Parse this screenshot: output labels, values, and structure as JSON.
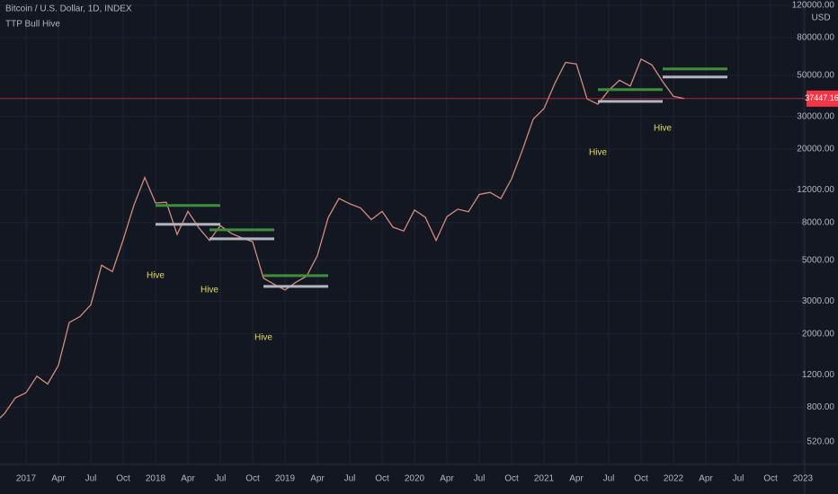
{
  "chart_data": {
    "type": "line",
    "title": "Bitcoin / U.S. Dollar, 1D, INDEX",
    "subtitle": "TTP Bull Hive",
    "y_unit": "USD",
    "log_scale": true,
    "grid": true,
    "color": "#d28b7e",
    "x": [
      "2016-10",
      "2016-11",
      "2016-12",
      "2017-01",
      "2017-02",
      "2017-03",
      "2017-04",
      "2017-05",
      "2017-06",
      "2017-07",
      "2017-08",
      "2017-09",
      "2017-10",
      "2017-11",
      "2017-12",
      "2018-01",
      "2018-02",
      "2018-03",
      "2018-04",
      "2018-05",
      "2018-06",
      "2018-07",
      "2018-08",
      "2018-09",
      "2018-10",
      "2018-11",
      "2018-12",
      "2019-01",
      "2019-02",
      "2019-03",
      "2019-04",
      "2019-05",
      "2019-06",
      "2019-07",
      "2019-08",
      "2019-09",
      "2019-10",
      "2019-11",
      "2019-12",
      "2020-01",
      "2020-02",
      "2020-03",
      "2020-04",
      "2020-05",
      "2020-06",
      "2020-07",
      "2020-08",
      "2020-09",
      "2020-10",
      "2020-11",
      "2020-12",
      "2021-01",
      "2021-02",
      "2021-03",
      "2021-04",
      "2021-05",
      "2021-06",
      "2021-07",
      "2021-08",
      "2021-09",
      "2021-10",
      "2021-11",
      "2021-12",
      "2022-01",
      "2022-02"
    ],
    "values": [
      650,
      740,
      900,
      960,
      1180,
      1070,
      1350,
      2300,
      2480,
      2870,
      4700,
      4340,
      6450,
      9950,
      14000,
      10200,
      10300,
      6900,
      9200,
      7500,
      6400,
      7700,
      7000,
      6600,
      6300,
      4000,
      3700,
      3450,
      3800,
      4100,
      5300,
      8500,
      10800,
      10100,
      9600,
      8300,
      9200,
      7550,
      7200,
      9350,
      8550,
      6400,
      8600,
      9450,
      9140,
      11350,
      11650,
      10780,
      13800,
      19700,
      29000,
      33100,
      45200,
      58800,
      57700,
      37300,
      35000,
      41500,
      47100,
      43800,
      61300,
      57000,
      46300,
      38500,
      37447
    ],
    "xlim": [
      "2016-10",
      "2023-02"
    ],
    "xticks": [
      {
        "value": "2017-01",
        "label": "2017"
      },
      {
        "value": "2017-04",
        "label": "Apr"
      },
      {
        "value": "2017-07",
        "label": "Jul"
      },
      {
        "value": "2017-10",
        "label": "Oct"
      },
      {
        "value": "2018-01",
        "label": "2018"
      },
      {
        "value": "2018-04",
        "label": "Apr"
      },
      {
        "value": "2018-07",
        "label": "Jul"
      },
      {
        "value": "2018-10",
        "label": "Oct"
      },
      {
        "value": "2019-01",
        "label": "2019"
      },
      {
        "value": "2019-04",
        "label": "Apr"
      },
      {
        "value": "2019-07",
        "label": "Jul"
      },
      {
        "value": "2019-10",
        "label": "Oct"
      },
      {
        "value": "2020-01",
        "label": "2020"
      },
      {
        "value": "2020-04",
        "label": "Apr"
      },
      {
        "value": "2020-07",
        "label": "Jul"
      },
      {
        "value": "2020-10",
        "label": "Oct"
      },
      {
        "value": "2021-01",
        "label": "2021"
      },
      {
        "value": "2021-04",
        "label": "Apr"
      },
      {
        "value": "2021-07",
        "label": "Jul"
      },
      {
        "value": "2021-10",
        "label": "Oct"
      },
      {
        "value": "2022-01",
        "label": "2022"
      },
      {
        "value": "2022-04",
        "label": "Apr"
      },
      {
        "value": "2022-07",
        "label": "Jul"
      },
      {
        "value": "2022-10",
        "label": "Oct"
      },
      {
        "value": "2023-01",
        "label": "2023"
      }
    ],
    "ylim": [
      393,
      128000
    ],
    "yticks": [
      {
        "value": 120000,
        "label": "120000.00"
      },
      {
        "value": 80000,
        "label": "80000.00"
      },
      {
        "value": 50000,
        "label": "50000.00"
      },
      {
        "value": 30000,
        "label": "30000.00"
      },
      {
        "value": 20000,
        "label": "20000.00"
      },
      {
        "value": 12000,
        "label": "12000.00"
      },
      {
        "value": 8000,
        "label": "8000.00"
      },
      {
        "value": 5000,
        "label": "5000.00"
      },
      {
        "value": 3000,
        "label": "3000.00"
      },
      {
        "value": 2000,
        "label": "2000.00"
      },
      {
        "value": 1200,
        "label": "1200.00"
      },
      {
        "value": 800,
        "label": "800.00"
      },
      {
        "value": 520,
        "label": "520.00"
      }
    ],
    "last_price": {
      "value": 37447.16,
      "label": "37447.16"
    },
    "hive_top_color": "#3f8f3a",
    "hive_bottom_color": "#b2b5be",
    "hive_label_color": "#e6de5a",
    "hives": [
      {
        "start": "2018-01",
        "end": "2018-07",
        "top": 9890,
        "bottom": 7820,
        "label": "Hive"
      },
      {
        "start": "2018-06",
        "end": "2018-12",
        "top": 7300,
        "bottom": 6530,
        "label": "Hive"
      },
      {
        "start": "2018-11",
        "end": "2019-05",
        "top": 4130,
        "bottom": 3610,
        "label": "Hive"
      },
      {
        "start": "2021-06",
        "end": "2021-12",
        "top": 41900,
        "bottom": 36200,
        "label": "Hive"
      },
      {
        "start": "2021-12",
        "end": "2022-06",
        "top": 54200,
        "bottom": 49000,
        "label": "Hive"
      }
    ]
  }
}
